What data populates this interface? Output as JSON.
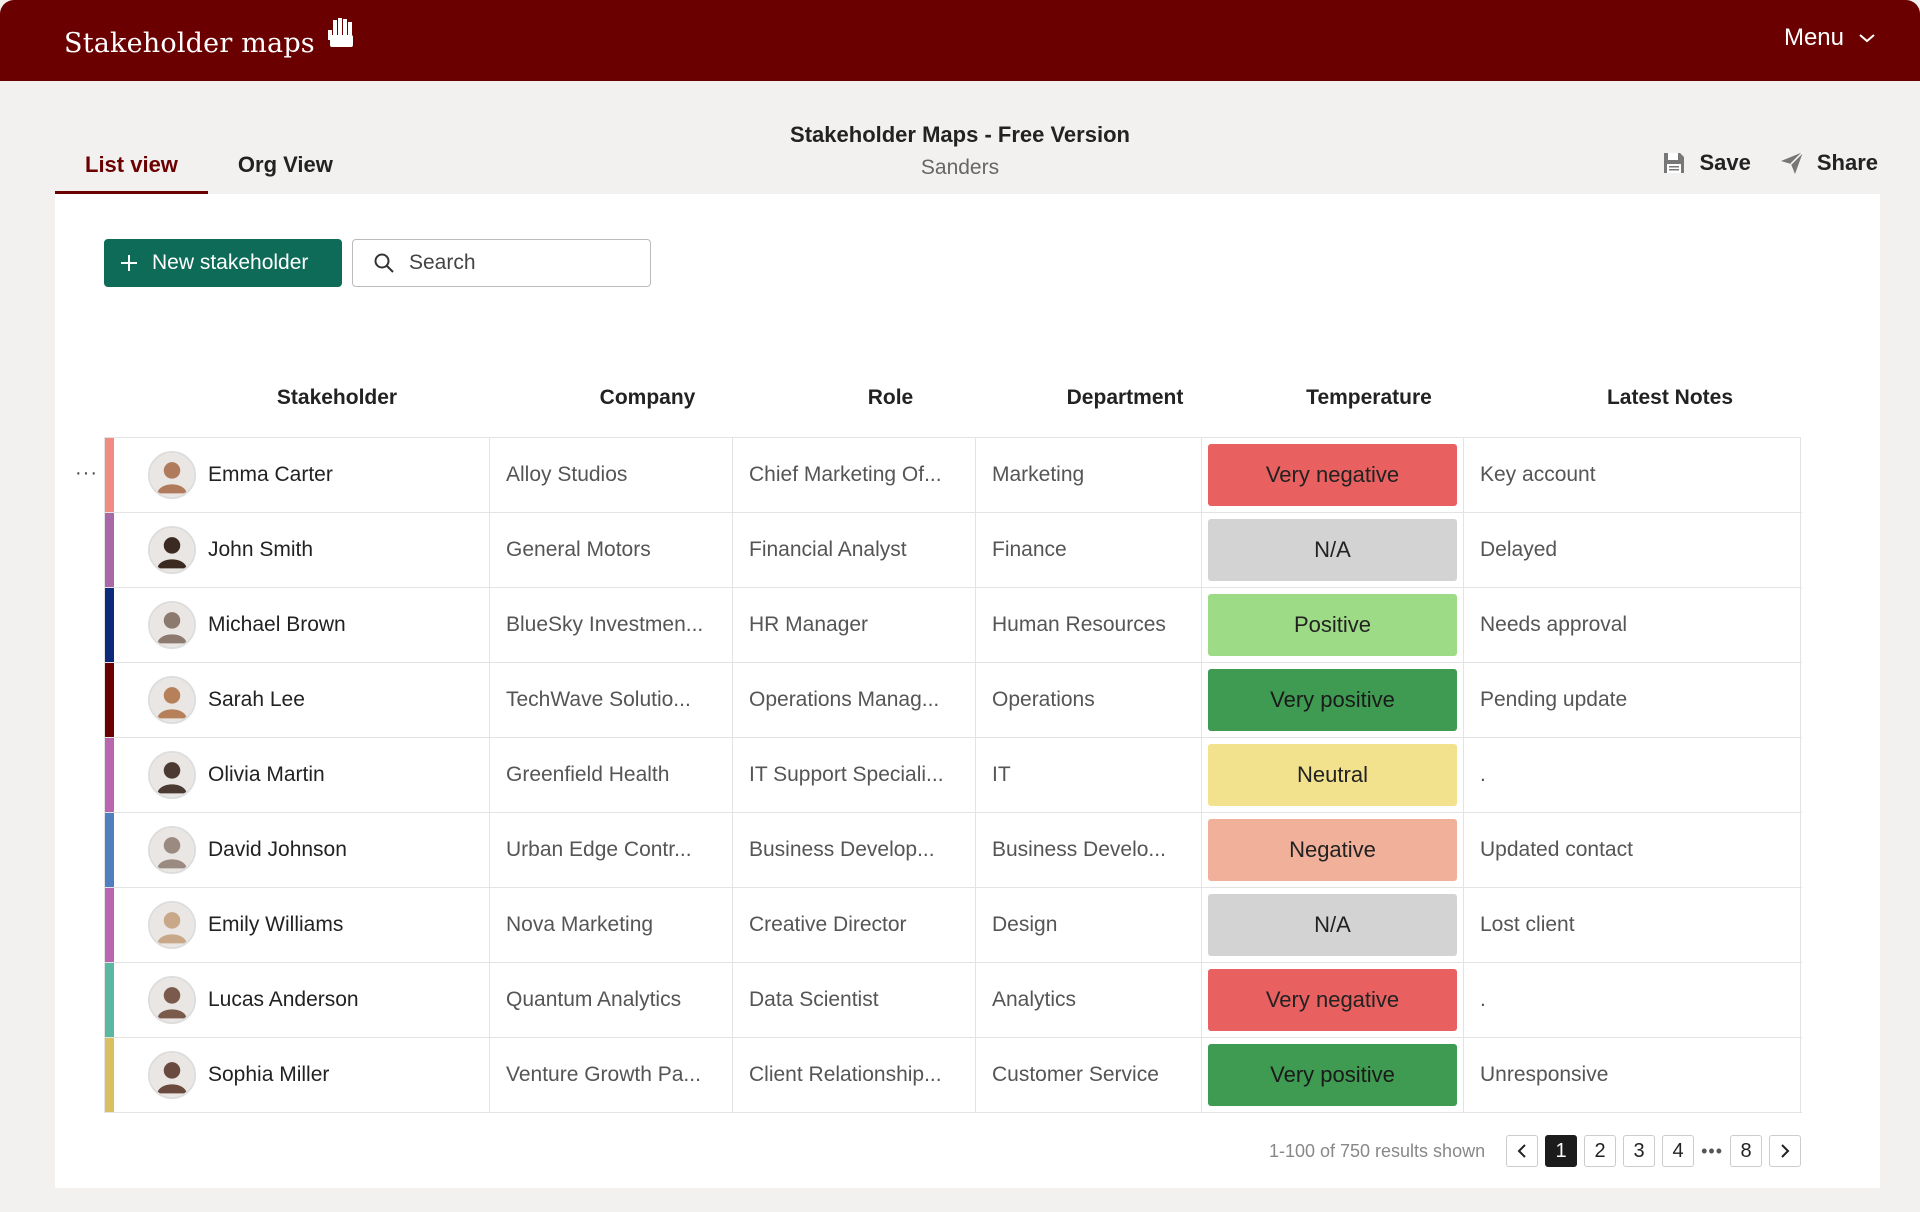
{
  "header": {
    "brand": "Stakeholder maps",
    "menu_label": "Menu",
    "brand_icon": "raised-hand-icon"
  },
  "tabs": [
    {
      "label": "List view",
      "active": true
    },
    {
      "label": "Org View",
      "active": false
    }
  ],
  "document": {
    "title": "Stakeholder Maps - Free Version",
    "subtitle": "Sanders"
  },
  "actions": {
    "save_label": "Save",
    "share_label": "Share"
  },
  "toolbar": {
    "new_label": "New stakeholder",
    "search_placeholder": "Search"
  },
  "table": {
    "columns": [
      "Stakeholder",
      "Company",
      "Role",
      "Department",
      "Temperature",
      "Latest Notes"
    ],
    "rows": [
      {
        "name": "Emma Carter",
        "company": "Alloy Studios",
        "role": "Chief Marketing Of...",
        "department": "Marketing",
        "temperature": "Very negative",
        "notes": "Key account",
        "stripe": "#f28b82",
        "avatar": "#b07b5d"
      },
      {
        "name": "John Smith",
        "company": "General Motors",
        "role": "Financial Analyst",
        "department": "Finance",
        "temperature": "N/A",
        "notes": "Delayed",
        "stripe": "#a868a8",
        "avatar": "#3b2a22"
      },
      {
        "name": "Michael Brown",
        "company": "BlueSky Investmen...",
        "role": "HR Manager",
        "department": "Human Resources",
        "temperature": "Positive",
        "notes": "Needs approval",
        "stripe": "#0d2a7a",
        "avatar": "#8d7a6e"
      },
      {
        "name": "Sarah Lee",
        "company": "TechWave Solutio...",
        "role": "Operations Manag...",
        "department": "Operations",
        "temperature": "Very positive",
        "notes": "Pending update",
        "stripe": "#6b0000",
        "avatar": "#b5805a"
      },
      {
        "name": "Olivia Martin",
        "company": "Greenfield Health",
        "role": "IT Support Speciali...",
        "department": "IT",
        "temperature": "Neutral",
        "notes": ".",
        "stripe": "#b866b0",
        "avatar": "#4a3a32"
      },
      {
        "name": "David Johnson",
        "company": "Urban Edge Contr...",
        "role": "Business Develop...",
        "department": "Business Develo...",
        "temperature": "Negative",
        "notes": "Updated contact",
        "stripe": "#4f7fbf",
        "avatar": "#9a8a80"
      },
      {
        "name": "Emily Williams",
        "company": "Nova Marketing",
        "role": "Creative Director",
        "department": "Design",
        "temperature": "N/A",
        "notes": "Lost client",
        "stripe": "#b866b0",
        "avatar": "#c8a888"
      },
      {
        "name": "Lucas Anderson",
        "company": "Quantum Analytics",
        "role": "Data Scientist",
        "department": "Analytics",
        "temperature": "Very negative",
        "notes": ".",
        "stripe": "#5ab8a0",
        "avatar": "#7a5a4a"
      },
      {
        "name": "Sophia Miller",
        "company": "Venture Growth Pa...",
        "role": "Client Relationship...",
        "department": "Customer Service",
        "temperature": "Very positive",
        "notes": "Unresponsive",
        "stripe": "#d8c060",
        "avatar": "#6a4a3e"
      }
    ]
  },
  "temperature_colors": {
    "Very negative": "#e8605f",
    "Negative": "#f0b09a",
    "Neutral": "#f2e28e",
    "Positive": "#9edb86",
    "Very positive": "#3f9b51",
    "N/A": "#d3d3d3"
  },
  "pagination": {
    "summary": "1-100 of 750 results shown",
    "pages": [
      "1",
      "2",
      "3",
      "4"
    ],
    "ellipsis": "•••",
    "last_page": "8",
    "current": "1"
  },
  "colors": {
    "brand": "#6b0000",
    "primary_button": "#0e6b58"
  }
}
